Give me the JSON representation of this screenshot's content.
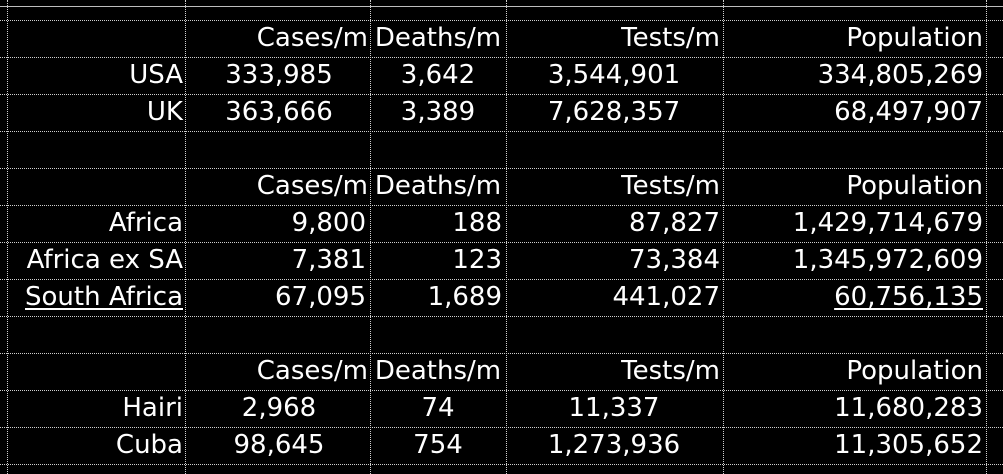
{
  "tables": [
    {
      "header": {
        "cases": "Cases/m",
        "deaths": "Deaths/m",
        "tests": "Tests/m",
        "population": "Population"
      },
      "rows": [
        {
          "label": "USA",
          "cases": "333,985",
          "deaths": "3,642",
          "tests": "3,544,901",
          "population": "334,805,269"
        },
        {
          "label": "UK",
          "cases": "363,666",
          "deaths": "3,389",
          "tests": "7,628,357",
          "population": "68,497,907"
        }
      ]
    },
    {
      "header": {
        "cases": "Cases/m",
        "deaths": "Deaths/m",
        "tests": "Tests/m",
        "population": "Population"
      },
      "rows": [
        {
          "label": "Africa",
          "cases": "9,800",
          "deaths": "188",
          "tests": "87,827",
          "population": "1,429,714,679"
        },
        {
          "label": "Africa ex SA",
          "cases": "7,381",
          "deaths": "123",
          "tests": "73,384",
          "population": "1,345,972,609"
        },
        {
          "label": "South Africa",
          "cases": "67,095",
          "deaths": "1,689",
          "tests": "441,027",
          "population": "60,756,135"
        }
      ]
    },
    {
      "header": {
        "cases": "Cases/m",
        "deaths": "Deaths/m",
        "tests": "Tests/m",
        "population": "Population"
      },
      "rows": [
        {
          "label": "Hairi",
          "cases": "2,968",
          "deaths": "74",
          "tests": "11,337",
          "population": "11,680,283"
        },
        {
          "label": "Cuba",
          "cases": "98,645",
          "deaths": "754",
          "tests": "1,273,936",
          "population": "11,305,652"
        }
      ]
    }
  ]
}
